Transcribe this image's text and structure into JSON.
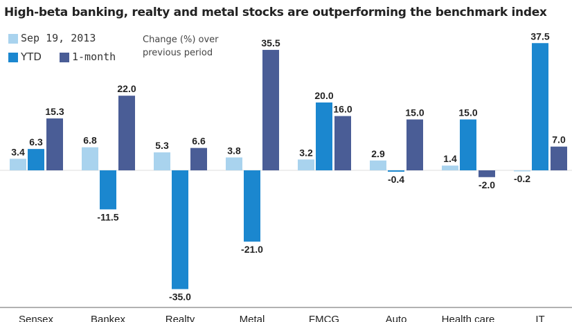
{
  "chart_data": {
    "type": "bar",
    "title": "High-beta banking, realty and metal stocks are outperforming the benchmark index",
    "note": "Change (%) over previous period",
    "categories": [
      "Sensex",
      "Bankex",
      "Realty",
      "Metal",
      "FMCG",
      "Auto",
      "Health care",
      "IT"
    ],
    "series": [
      {
        "name": "Sep 19, 2013",
        "color": "#a9d3ee",
        "values": [
          3.4,
          6.8,
          5.3,
          3.8,
          3.2,
          2.9,
          1.4,
          -0.2
        ]
      },
      {
        "name": "YTD",
        "color": "#1b87cf",
        "values": [
          6.3,
          -11.5,
          -35.0,
          -21.0,
          20.0,
          -0.4,
          15.0,
          37.5
        ]
      },
      {
        "name": "1-month",
        "color": "#4a5d96",
        "values": [
          15.3,
          22.0,
          6.6,
          35.5,
          16.0,
          15.0,
          -2.0,
          7.0
        ]
      }
    ],
    "ylim": [
      -36,
      37.5
    ],
    "grid": false,
    "legend_placement": "top-left"
  }
}
